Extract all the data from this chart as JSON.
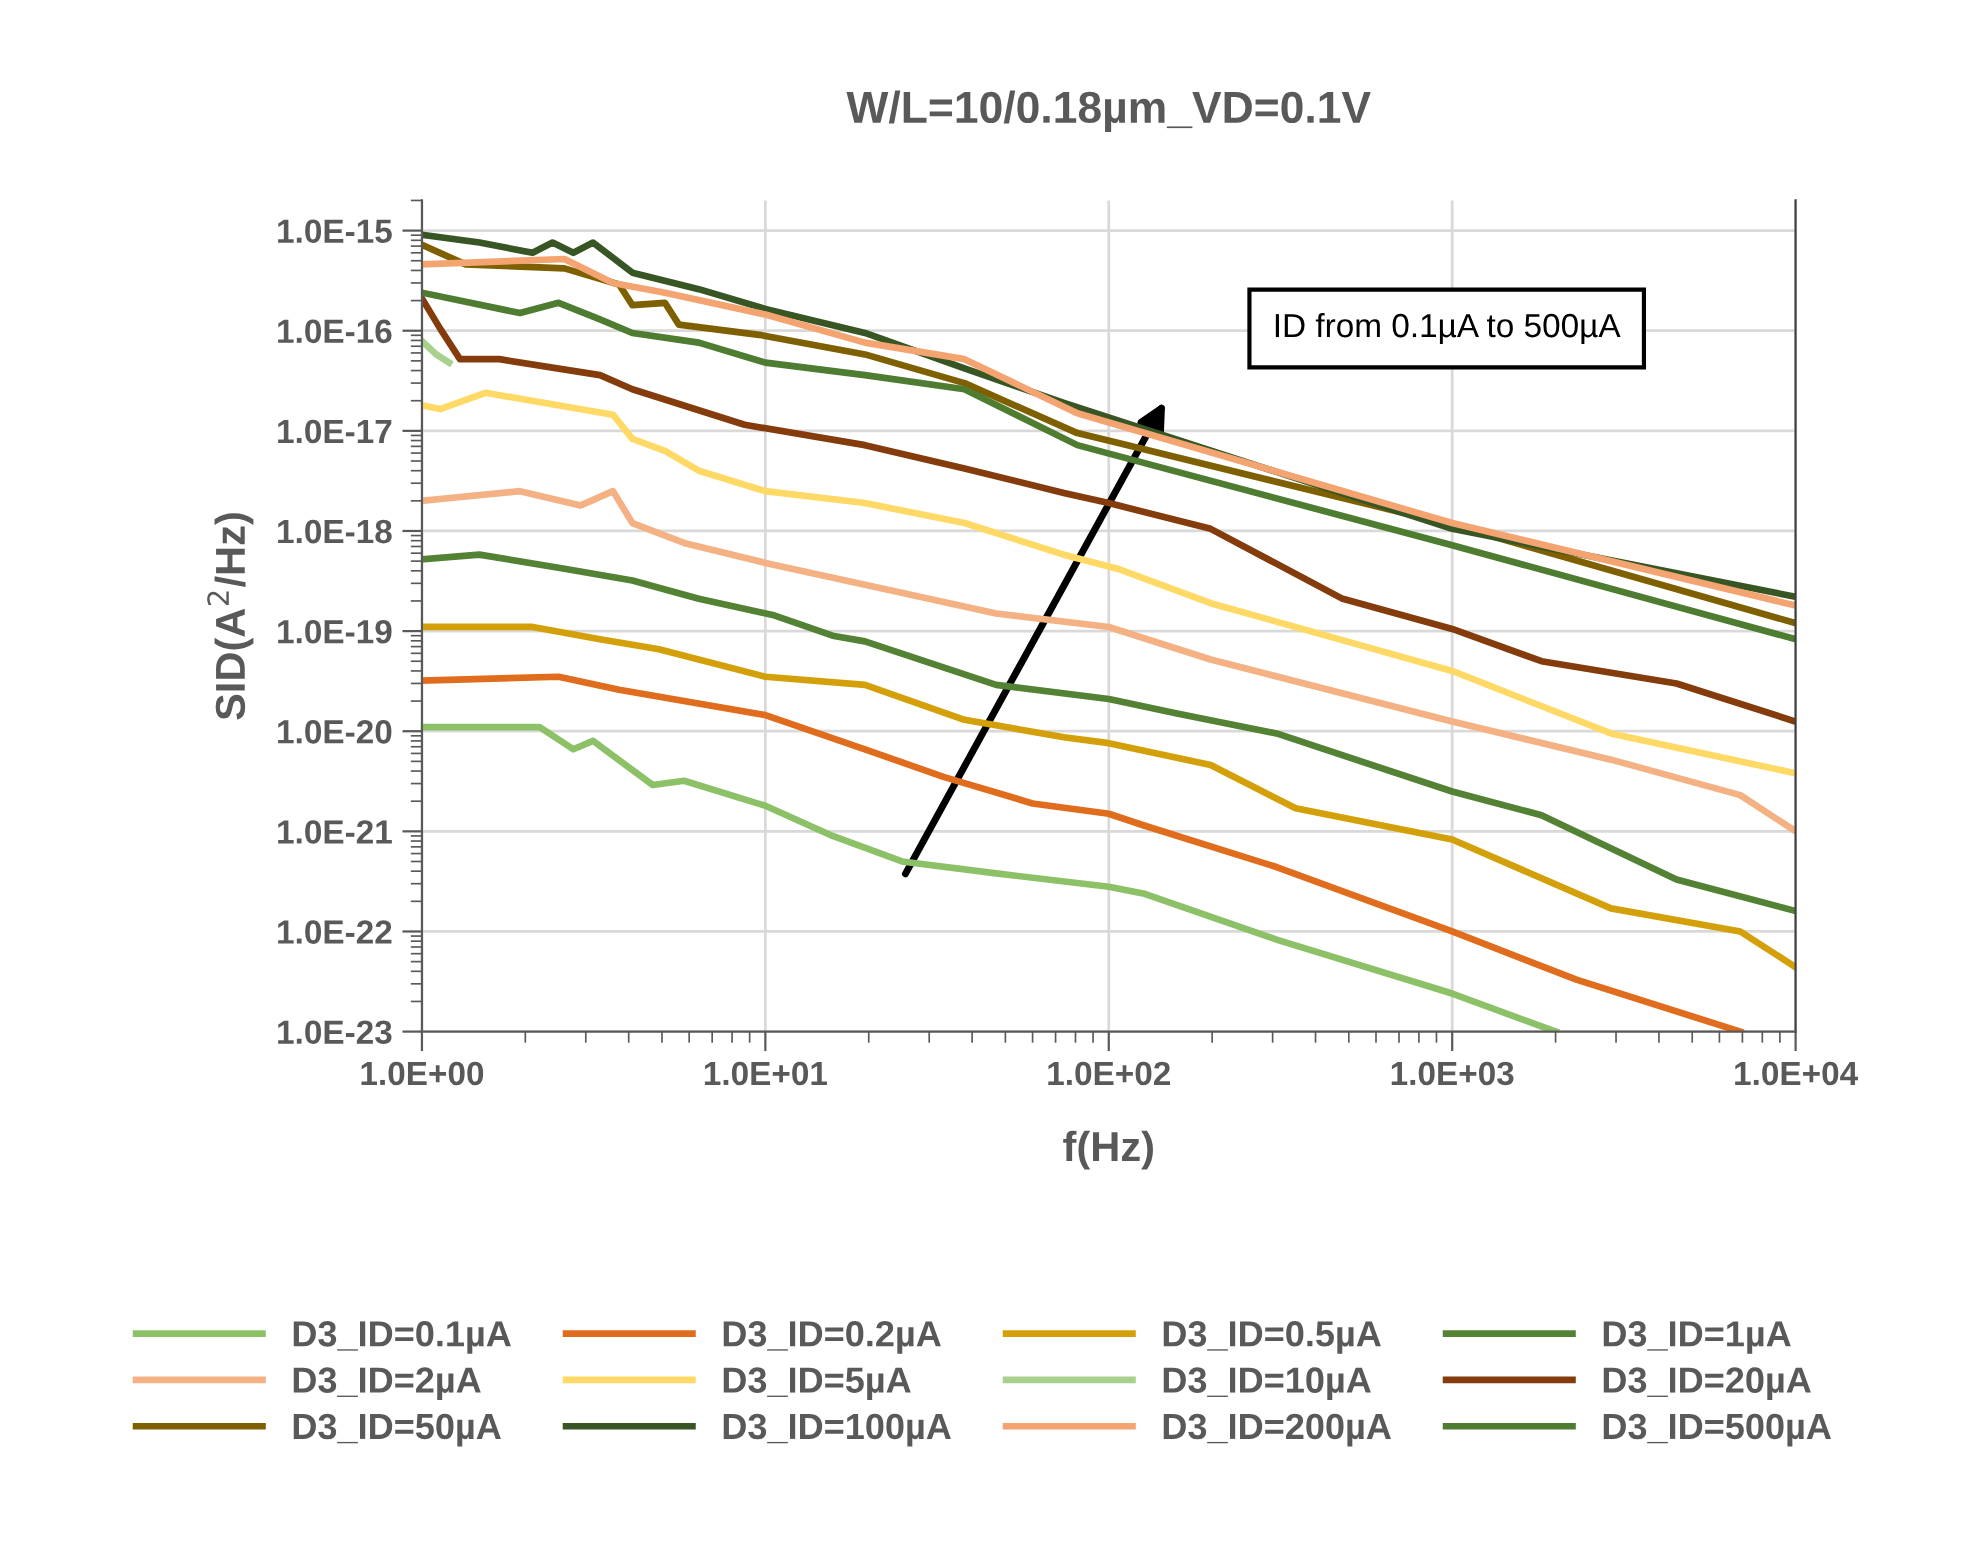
{
  "chart_data": {
    "type": "line",
    "title": "W/L=10/0.18µm_VD=0.1V",
    "xlabel": "f(Hz)",
    "ylabel": "SID(A$^{2}$/Hz)",
    "log": "xy",
    "grid": true,
    "legend": "bottom",
    "marker": "none",
    "line_style": "solid",
    "xlim": [
      1,
      10000
    ],
    "ylim": [
      1e-23,
      2e-15
    ],
    "xticks": [
      {
        "value": 1,
        "label": "1.0E+00"
      },
      {
        "value": 10,
        "label": "1.0E+01"
      },
      {
        "value": 100,
        "label": "1.0E+02"
      },
      {
        "value": 1000,
        "label": "1.0E+03"
      },
      {
        "value": 10000,
        "label": "1.0E+04"
      }
    ],
    "yticks": [
      {
        "value": 1e-23,
        "label": "1.0E-23"
      },
      {
        "value": 1e-22,
        "label": "1.0E-22"
      },
      {
        "value": 1e-21,
        "label": "1.0E-21"
      },
      {
        "value": 1e-20,
        "label": "1.0E-20"
      },
      {
        "value": 1e-19,
        "label": "1.0E-19"
      },
      {
        "value": 1e-18,
        "label": "1.0E-18"
      },
      {
        "value": 1e-17,
        "label": "1.0E-17"
      },
      {
        "value": 1e-16,
        "label": "1.0E-16"
      },
      {
        "value": 1e-15,
        "label": "1.0E-15"
      }
    ],
    "annotations": [
      "ID from 0.1µA to 500µA"
    ],
    "series": [
      {
        "name": "D3_ID=0.1µA",
        "color": "#8cc168",
        "x": [
          1,
          1.6,
          2.2,
          2.76,
          3.15,
          4.7,
          5.8,
          10,
          15.7,
          25,
          47,
          100,
          126,
          308,
          1000,
          2000
        ],
        "values": [
          1.1e-20,
          1.1e-20,
          1.1e-20,
          6.6e-21,
          8e-21,
          2.9e-21,
          3.2e-21,
          1.8e-21,
          9e-22,
          5e-22,
          3.8e-22,
          2.8e-22,
          2.4e-22,
          8.3e-23,
          2.4e-23,
          1e-23
        ]
      },
      {
        "name": "D3_ID=0.2µA",
        "color": "#e06c1e",
        "x": [
          1,
          2.5,
          3.75,
          10,
          19.5,
          33,
          60,
          100,
          126,
          308,
          1000,
          2300,
          6900
        ],
        "values": [
          3.2e-20,
          3.5e-20,
          2.6e-20,
          1.45e-20,
          6.6e-21,
          3.5e-21,
          1.9e-21,
          1.5e-21,
          1.15e-21,
          4.4e-22,
          1e-22,
          3.3e-23,
          1e-23
        ]
      },
      {
        "name": "D3_ID=0.5µA",
        "color": "#d4a00a",
        "x": [
          1,
          2.1,
          3.3,
          4.9,
          10,
          19.5,
          38,
          74,
          100,
          198,
          350,
          1000,
          2900,
          6900,
          10000
        ],
        "values": [
          1.1e-19,
          1.1e-19,
          8.3e-20,
          6.6e-20,
          3.5e-20,
          2.9e-20,
          1.3e-20,
          8.7e-21,
          7.6e-21,
          4.6e-21,
          1.7e-21,
          8.3e-22,
          1.7e-22,
          1e-22,
          4.4e-23
        ]
      },
      {
        "name": "D3_ID=1µA",
        "color": "#548235",
        "x": [
          1,
          1.47,
          2.6,
          4.1,
          6.4,
          10.5,
          15.7,
          19.5,
          47,
          100,
          158,
          308,
          1000,
          1820,
          4500,
          10000
        ],
        "values": [
          5.2e-19,
          5.8e-19,
          4.2e-19,
          3.2e-19,
          2.1e-19,
          1.45e-19,
          9e-20,
          7.9e-20,
          2.9e-20,
          2.1e-20,
          1.5e-20,
          9.5e-21,
          2.5e-21,
          1.45e-21,
          3.3e-22,
          1.6e-22
        ]
      },
      {
        "name": "D3_ID=2µA",
        "color": "#f4b183",
        "x": [
          1,
          1.93,
          2.9,
          3.6,
          4.1,
          5.8,
          10,
          19.5,
          47,
          100,
          198,
          1000,
          2900,
          6900,
          10000
        ],
        "values": [
          2e-18,
          2.5e-18,
          1.8e-18,
          2.5e-18,
          1.2e-18,
          7.6e-19,
          4.8e-19,
          2.9e-19,
          1.5e-19,
          1.1e-19,
          5.2e-20,
          1.25e-20,
          5.2e-21,
          2.3e-21,
          1e-21
        ]
      },
      {
        "name": "D3_ID=5µA",
        "color": "#ffd966",
        "x": [
          1,
          1.13,
          1.53,
          3.6,
          4.1,
          5.1,
          6.4,
          10,
          19.5,
          38,
          74,
          106,
          198,
          1000,
          2900,
          10000
        ],
        "values": [
          1.8e-17,
          1.65e-17,
          2.4e-17,
          1.45e-17,
          8.3e-18,
          6.3e-18,
          4e-18,
          2.5e-18,
          1.9e-18,
          1.2e-18,
          5.8e-19,
          4.2e-19,
          1.9e-19,
          4e-20,
          9.5e-21,
          3.8e-21
        ]
      },
      {
        "name": "D3_ID=10µA",
        "color": "#a9d18e",
        "x": [
          1,
          1.1,
          1.2
        ],
        "values": [
          7.9e-17,
          5.8e-17,
          4.8e-17
        ]
      },
      {
        "name": "D3_ID=20µA",
        "color": "#843c0c",
        "x": [
          1,
          1.13,
          1.29,
          1.68,
          3.3,
          4.1,
          8.7,
          19.5,
          38,
          74,
          100,
          198,
          480,
          1000,
          1820,
          4500,
          10000
        ],
        "values": [
          2.1e-16,
          1.05e-16,
          5.2e-17,
          5.2e-17,
          3.6e-17,
          2.6e-17,
          1.15e-17,
          7.2e-18,
          4.2e-18,
          2.4e-18,
          1.9e-18,
          1.05e-18,
          2.1e-19,
          1.05e-19,
          5e-20,
          3e-20,
          1.25e-20
        ]
      },
      {
        "name": "D3_ID=50µA",
        "color": "#7f6000",
        "x": [
          1,
          1.34,
          2.6,
          3.75,
          4.1,
          5.1,
          5.6,
          9.6,
          19.5,
          38,
          81,
          106,
          1000,
          10000
        ],
        "values": [
          7.2e-16,
          4.6e-16,
          4.2e-16,
          2.9e-16,
          1.8e-16,
          1.9e-16,
          1.15e-16,
          9.1e-17,
          5.8e-17,
          3e-17,
          9.5e-18,
          7.6e-18,
          1.15e-18,
          1.2e-19
        ]
      },
      {
        "name": "D3_ID=100µA",
        "color": "#375623",
        "x": [
          1,
          1.47,
          2.1,
          2.4,
          2.76,
          3.15,
          4.1,
          6.4,
          10,
          19.5,
          38,
          74,
          1000,
          10000
        ],
        "values": [
          9.1e-16,
          7.6e-16,
          6e-16,
          7.6e-16,
          6e-16,
          7.6e-16,
          3.8e-16,
          2.6e-16,
          1.65e-16,
          9.5e-17,
          4.2e-17,
          1.9e-17,
          1.05e-18,
          2.2e-19
        ]
      },
      {
        "name": "D3_ID=200µA",
        "color": "#f4a470",
        "x": [
          1,
          2.6,
          3.6,
          5.1,
          10,
          19.5,
          38,
          81,
          1000,
          10000
        ],
        "values": [
          4.6e-16,
          5.2e-16,
          3e-16,
          2.4e-16,
          1.45e-16,
          7.6e-17,
          5.2e-17,
          1.5e-17,
          1.2e-18,
          1.8e-19
        ]
      },
      {
        "name": "D3_ID=500µA",
        "color": "#4e7c30",
        "x": [
          1,
          1.93,
          2.5,
          3.3,
          4.1,
          6.4,
          10,
          19.5,
          38,
          81,
          1000,
          10000
        ],
        "values": [
          2.4e-16,
          1.5e-16,
          1.9e-16,
          1.3e-16,
          9.5e-17,
          7.6e-17,
          4.8e-17,
          3.6e-17,
          2.6e-17,
          7.2e-18,
          7.2e-19,
          8.3e-20
        ]
      }
    ]
  }
}
